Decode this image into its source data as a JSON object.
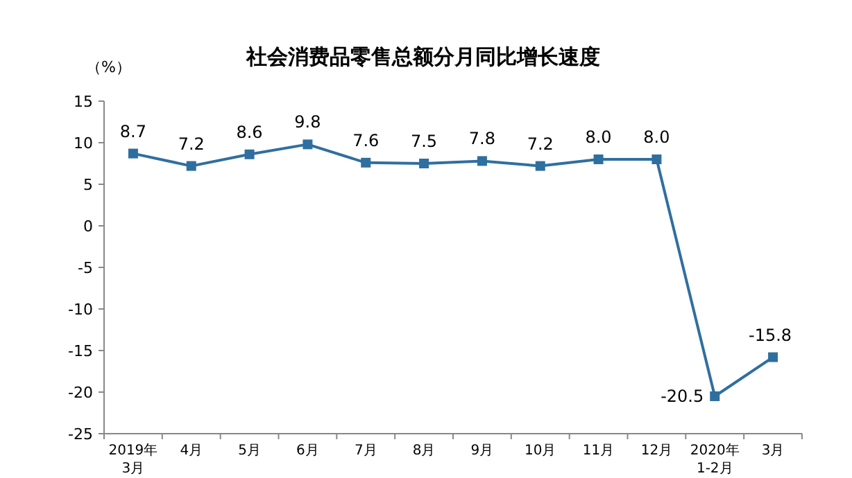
{
  "chart_data": {
    "type": "line",
    "title": "社会消费品零售总额分月同比增长速度",
    "ylabel": "（%）",
    "categories": [
      "2019年\n3月",
      "4月",
      "5月",
      "6月",
      "7月",
      "8月",
      "9月",
      "10月",
      "11月",
      "12月",
      "2020年\n1-2月",
      "3月"
    ],
    "values": [
      8.7,
      7.2,
      8.6,
      9.8,
      7.6,
      7.5,
      7.8,
      7.2,
      8.0,
      8.0,
      -20.5,
      -15.8
    ],
    "value_labels": [
      "8.7",
      "7.2",
      "8.6",
      "9.8",
      "7.6",
      "7.5",
      "7.8",
      "7.2",
      "8.0",
      "8.0",
      "-20.5",
      "-15.8"
    ],
    "color": "#2f6f9f",
    "marker": "square",
    "ylim": [
      -25,
      15
    ],
    "yticks": [
      -25,
      -20,
      -15,
      -10,
      -5,
      0,
      5,
      10,
      15
    ],
    "grid": false
  }
}
